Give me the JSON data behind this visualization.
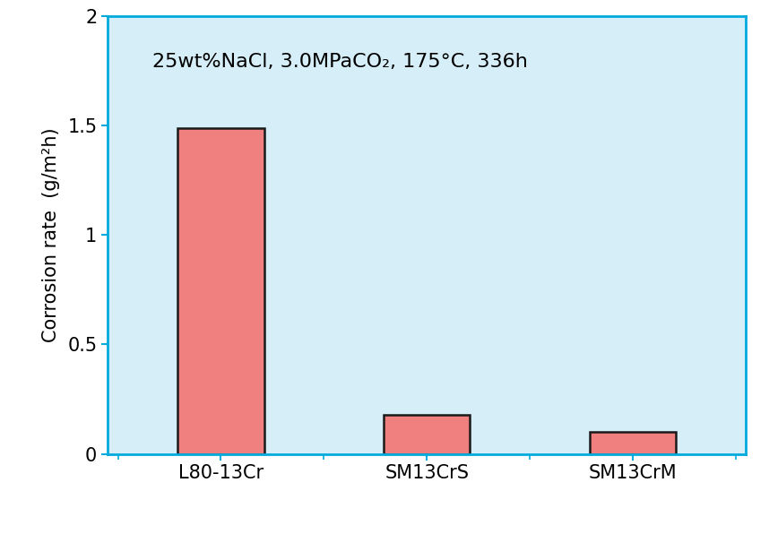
{
  "categories": [
    "L80-13Cr",
    "SM13CrS",
    "SM13CrM"
  ],
  "values": [
    1.49,
    0.18,
    0.1
  ],
  "bar_color": "#F08080",
  "bar_edgecolor": "#1a1a1a",
  "bar_linewidth": 1.8,
  "bar_width": 0.42,
  "plot_bg_color": "#D6EEF8",
  "fig_bg_color": "#FFFFFF",
  "ylabel": "Corrosion rate  (g/m²h)",
  "ylim": [
    0,
    2.0
  ],
  "yticks": [
    0,
    0.5,
    1.0,
    1.5,
    2.0
  ],
  "ytick_labels": [
    "0",
    "0.5",
    "1",
    "1.5",
    "2"
  ],
  "annotation": "25wt%NaCl, 3.0MPaCO₂, 175°C, 336h",
  "annotation_fontsize": 16,
  "ylabel_fontsize": 15,
  "tick_label_fontsize": 15,
  "xlabel_fontsize": 15,
  "spine_color": "#00AADD",
  "tick_color": "#00AADD",
  "frame_color": "#00AADD",
  "frame_linewidth": 2.0
}
